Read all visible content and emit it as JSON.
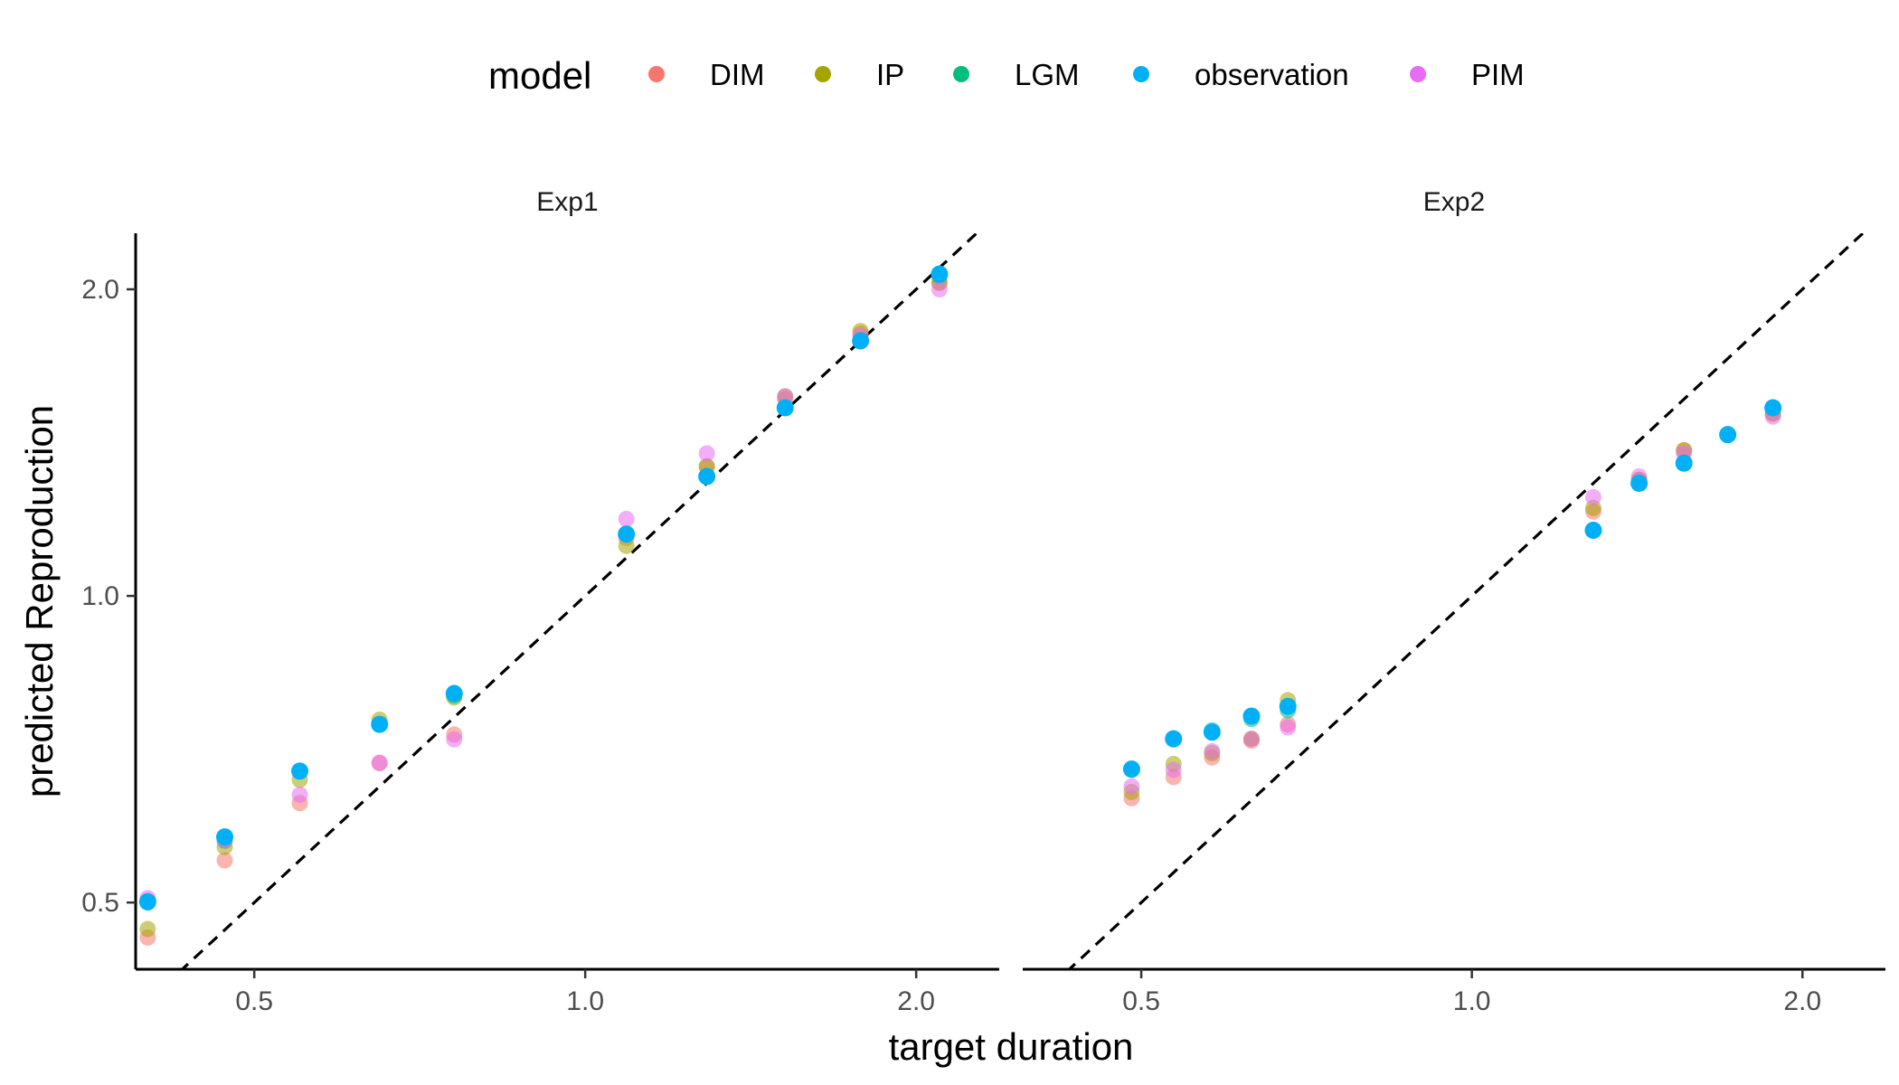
{
  "chart_data": {
    "type": "scatter",
    "xlabel": "target duration",
    "ylabel": "predicted Reproduction",
    "x_scale": "log",
    "y_scale": "log",
    "xlim": [
      0.39,
      2.38
    ],
    "ylim": [
      0.43,
      2.27
    ],
    "x_ticks": [
      0.5,
      1.0,
      2.0
    ],
    "x_tick_labels": [
      "0.5",
      "1.0",
      "2.0"
    ],
    "y_ticks": [
      0.5,
      1.0,
      2.0
    ],
    "y_tick_labels": [
      "0.5",
      "1.0",
      "2.0"
    ],
    "grid": false,
    "reference_line": "identity (dashed)",
    "legend": {
      "title": "model",
      "position": "top",
      "entries": [
        {
          "name": "DIM",
          "color": "#F8766D"
        },
        {
          "name": "IP",
          "color": "#A3A500"
        },
        {
          "name": "LGM",
          "color": "#00BF7D"
        },
        {
          "name": "observation",
          "color": "#00B0F6"
        },
        {
          "name": "PIM",
          "color": "#E76BF3"
        }
      ]
    },
    "panels": [
      {
        "label": "Exp1",
        "x": [
          0.4,
          0.47,
          0.55,
          0.65,
          0.76,
          1.09,
          1.29,
          1.52,
          1.78,
          2.1
        ],
        "series": [
          {
            "name": "DIM",
            "y": [
              0.462,
              0.55,
              0.626,
              0.685,
              0.731,
              1.14,
              1.34,
              1.56,
              1.81,
              2.03
            ]
          },
          {
            "name": "IP",
            "y": [
              0.471,
              0.567,
              0.66,
              0.756,
              0.795,
              1.12,
              1.34,
              1.57,
              1.82,
              2.03
            ]
          },
          {
            "name": "LGM",
            "y": [
              0.5,
              0.575,
              0.673,
              0.748,
              0.798,
              1.15,
              1.31,
              1.53,
              1.78,
              2.06
            ]
          },
          {
            "name": "observation",
            "y": [
              0.501,
              0.58,
              0.673,
              0.748,
              0.802,
              1.15,
              1.31,
              1.53,
              1.78,
              2.07
            ]
          },
          {
            "name": "PIM",
            "y": [
              0.505,
              0.575,
              0.638,
              0.686,
              0.723,
              1.19,
              1.38,
              1.57,
              1.8,
              2.0
            ]
          }
        ]
      },
      {
        "label": "Exp2",
        "x": [
          0.49,
          0.535,
          0.58,
          0.63,
          0.68,
          1.29,
          1.42,
          1.56,
          1.71,
          1.88
        ],
        "series": [
          {
            "name": "DIM",
            "y": [
              0.633,
              0.664,
              0.694,
              0.721,
              0.748,
              1.21,
              1.3,
              1.39,
              1.44,
              1.51
            ]
          },
          {
            "name": "IP",
            "y": [
              0.642,
              0.684,
              0.701,
              0.724,
              0.79,
              1.22,
              1.3,
              1.39,
              1.44,
              1.51
            ]
          },
          {
            "name": "LGM",
            "y": [
              0.675,
              0.723,
              0.738,
              0.757,
              0.772,
              1.16,
              1.29,
              1.35,
              1.44,
              1.53
            ]
          },
          {
            "name": "observation",
            "y": [
              0.676,
              0.724,
              0.735,
              0.762,
              0.779,
              1.16,
              1.29,
              1.35,
              1.44,
              1.53
            ]
          },
          {
            "name": "PIM",
            "y": [
              0.65,
              0.675,
              0.704,
              0.724,
              0.743,
              1.25,
              1.31,
              1.38,
              1.44,
              1.5
            ]
          }
        ]
      }
    ]
  }
}
